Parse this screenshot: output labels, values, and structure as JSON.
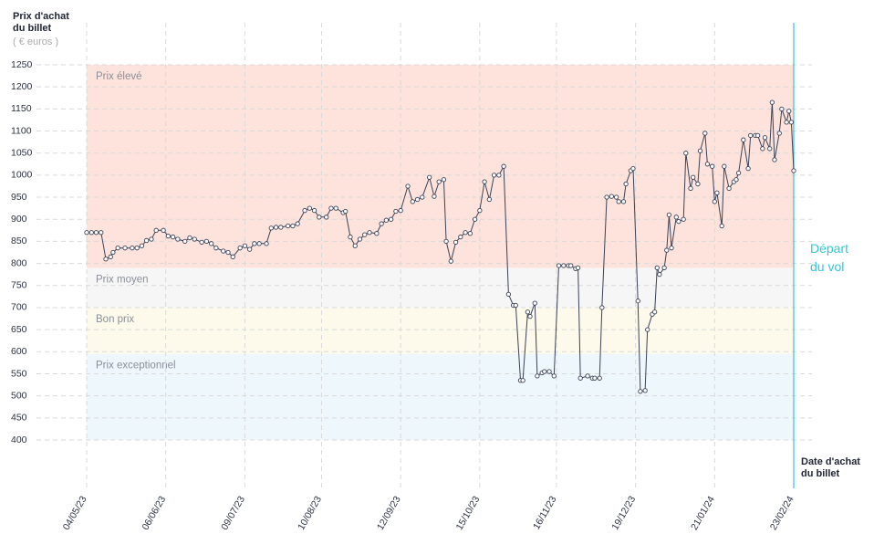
{
  "chart_data": {
    "type": "line",
    "y_label": "Prix d'achat du billet",
    "y_unit": "( € euros )",
    "x_label": "Date d'achat du billet",
    "bands": [
      {
        "name": "Prix élevé",
        "from": 790,
        "to": 1250,
        "color": "#fde3dc"
      },
      {
        "name": "Prix moyen",
        "from": 700,
        "to": 790,
        "color": "#f6f6f6"
      },
      {
        "name": "Bon prix",
        "from": 595,
        "to": 700,
        "color": "#fdfaeb"
      },
      {
        "name": "Prix exceptionnel",
        "from": 400,
        "to": 595,
        "color": "#eef7fc"
      }
    ],
    "event": {
      "date": "23/02/24",
      "label": "Départ du vol",
      "color": "#35c6d8"
    },
    "color": "#3b4256",
    "xlim": [
      "04/05/23",
      "23/02/24"
    ],
    "xticks": [
      "04/05/23",
      "06/06/23",
      "09/07/23",
      "10/08/23",
      "12/09/23",
      "15/10/23",
      "16/11/23",
      "19/12/23",
      "21/01/24",
      "23/02/24"
    ],
    "ylim": [
      400,
      1250
    ],
    "yticks": [
      400,
      450,
      500,
      550,
      600,
      650,
      700,
      750,
      800,
      850,
      900,
      950,
      1000,
      1050,
      1100,
      1150,
      1200,
      1250
    ],
    "grid": true,
    "x": [
      "04/05/23",
      "06/05/23",
      "08/05/23",
      "10/05/23",
      "12/05/23",
      "14/05/23",
      "15/05/23",
      "17/05/23",
      "20/05/23",
      "23/05/23",
      "25/05/23",
      "27/05/23",
      "29/05/23",
      "31/05/23",
      "02/06/23",
      "05/06/23",
      "07/06/23",
      "09/06/23",
      "11/06/23",
      "14/06/23",
      "16/06/23",
      "18/06/23",
      "21/06/23",
      "23/06/23",
      "25/06/23",
      "27/06/23",
      "30/06/23",
      "02/07/23",
      "04/07/23",
      "07/07/23",
      "09/07/23",
      "11/07/23",
      "13/07/23",
      "15/07/23",
      "18/07/23",
      "20/07/23",
      "22/07/23",
      "24/07/23",
      "27/07/23",
      "29/07/23",
      "31/07/23",
      "03/08/23",
      "05/08/23",
      "07/08/23",
      "09/08/23",
      "12/08/23",
      "14/08/23",
      "16/08/23",
      "19/08/23",
      "20/08/23",
      "22/08/23",
      "24/08/23",
      "26/08/23",
      "28/08/23",
      "30/08/23",
      "02/09/23",
      "04/09/23",
      "06/09/23",
      "08/09/23",
      "10/09/23",
      "12/09/23",
      "15/09/23",
      "17/09/23",
      "19/09/23",
      "21/09/23",
      "24/09/23",
      "26/09/23",
      "28/09/23",
      "30/09/23",
      "01/10/23",
      "03/10/23",
      "05/10/23",
      "07/10/23",
      "09/10/23",
      "11/10/23",
      "13/10/23",
      "15/10/23",
      "17/10/23",
      "19/10/23",
      "21/10/23",
      "23/10/23",
      "25/10/23",
      "27/10/23",
      "29/10/23",
      "30/10/23",
      "01/11/23",
      "02/11/23",
      "04/11/23",
      "05/11/23",
      "07/11/23",
      "08/11/23",
      "10/11/23",
      "11/11/23",
      "13/11/23",
      "15/11/23",
      "17/11/23",
      "19/11/23",
      "21/11/23",
      "22/11/23",
      "24/11/23",
      "25/11/23",
      "26/11/23",
      "29/11/23",
      "01/12/23",
      "02/12/23",
      "04/12/23",
      "05/12/23",
      "07/12/23",
      "09/12/23",
      "11/12/23",
      "12/12/23",
      "14/12/23",
      "15/12/23",
      "17/12/23",
      "18/12/23",
      "20/12/23",
      "21/12/23",
      "23/12/23",
      "24/12/23",
      "26/12/23",
      "27/12/23",
      "28/12/23",
      "29/12/23",
      "31/12/23",
      "01/01/24",
      "02/01/24",
      "03/01/24",
      "05/01/24",
      "06/01/24",
      "08/01/24",
      "09/01/24",
      "11/01/24",
      "12/01/24",
      "14/01/24",
      "15/01/24",
      "17/01/24",
      "18/01/24",
      "20/01/24",
      "21/01/24",
      "22/01/24",
      "24/01/24",
      "25/01/24",
      "27/01/24",
      "29/01/24",
      "30/01/24",
      "31/01/24",
      "02/02/24",
      "04/02/24",
      "05/02/24",
      "07/02/24",
      "08/02/24",
      "10/02/24",
      "11/02/24",
      "13/02/24",
      "14/02/24",
      "15/02/24",
      "17/02/24",
      "18/02/24",
      "20/02/24",
      "21/02/24",
      "22/02/24",
      "23/02/24"
    ],
    "values": [
      870,
      870,
      870,
      870,
      810,
      815,
      825,
      835,
      835,
      835,
      835,
      840,
      852,
      855,
      875,
      875,
      862,
      860,
      855,
      850,
      858,
      855,
      848,
      850,
      845,
      835,
      828,
      825,
      815,
      835,
      840,
      832,
      845,
      845,
      845,
      880,
      882,
      882,
      885,
      885,
      890,
      920,
      925,
      920,
      905,
      905,
      925,
      925,
      915,
      918,
      860,
      840,
      855,
      865,
      870,
      868,
      890,
      898,
      900,
      918,
      920,
      975,
      940,
      945,
      950,
      995,
      952,
      985,
      990,
      850,
      805,
      848,
      860,
      870,
      868,
      900,
      920,
      985,
      945,
      1000,
      1000,
      1020,
      730,
      705,
      705,
      535,
      535,
      690,
      680,
      710,
      545,
      552,
      555,
      555,
      545,
      795,
      795,
      795,
      795,
      788,
      790,
      540,
      545,
      540,
      540,
      540,
      700,
      950,
      952,
      950,
      940,
      940,
      980,
      1010,
      1015,
      715,
      510,
      512,
      650,
      685,
      690,
      790,
      775,
      790,
      830,
      910,
      835,
      905,
      895,
      900,
      1050,
      970,
      995,
      980,
      1055,
      1095,
      1025,
      1020,
      940,
      960,
      885,
      1020,
      970,
      985,
      990,
      1005,
      1080,
      1015,
      1090,
      1090,
      1090,
      1060,
      1085,
      1060,
      1165,
      1035,
      1095,
      1150,
      1120,
      1145,
      1120,
      1010
    ]
  }
}
